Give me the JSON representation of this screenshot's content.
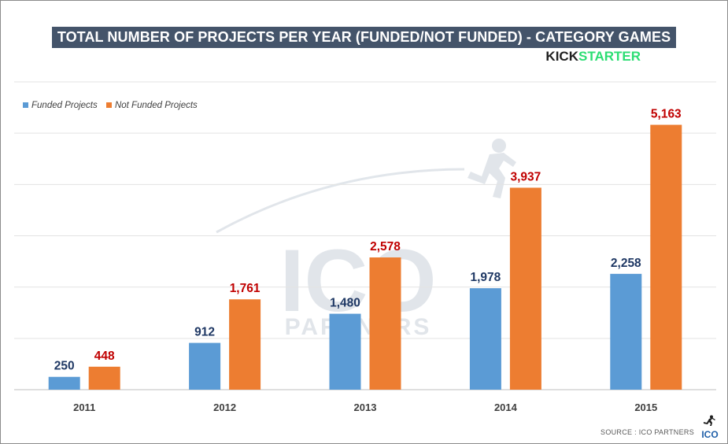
{
  "title": "TOTAL NUMBER OF PROJECTS PER YEAR (FUNDED/NOT FUNDED) - CATEGORY GAMES",
  "brand": {
    "part1": "KICK",
    "part2": "STARTER"
  },
  "watermark": {
    "line1": "ICO",
    "line2": "PARTNERS"
  },
  "source": "SOURCE : ICO PARTNERS",
  "logo": {
    "text": "ICO"
  },
  "colors": {
    "funded": "#5b9bd5",
    "not_funded": "#ed7d31",
    "funded_label": "#1f3864",
    "not_funded_label": "#c00000",
    "title_bg": "#44546a",
    "kickstarter_green": "#2bde73"
  },
  "chart_data": {
    "type": "bar",
    "title": "TOTAL NUMBER OF PROJECTS PER YEAR (FUNDED/NOT FUNDED) - CATEGORY GAMES",
    "categories": [
      "2011",
      "2012",
      "2013",
      "2014",
      "2015"
    ],
    "series": [
      {
        "name": "Funded Projects",
        "values": [
          250,
          912,
          1480,
          1978,
          2258
        ],
        "labels": [
          "250",
          "912",
          "1,480",
          "1,978",
          "2,258"
        ]
      },
      {
        "name": "Not Funded Projects",
        "values": [
          448,
          1761,
          2578,
          3937,
          5163
        ],
        "labels": [
          "448",
          "1,761",
          "2,578",
          "3,937",
          "5,163"
        ]
      }
    ],
    "xlabel": "",
    "ylabel": "",
    "ylim": [
      0,
      6000
    ],
    "grid": true,
    "legend": "top-left"
  }
}
